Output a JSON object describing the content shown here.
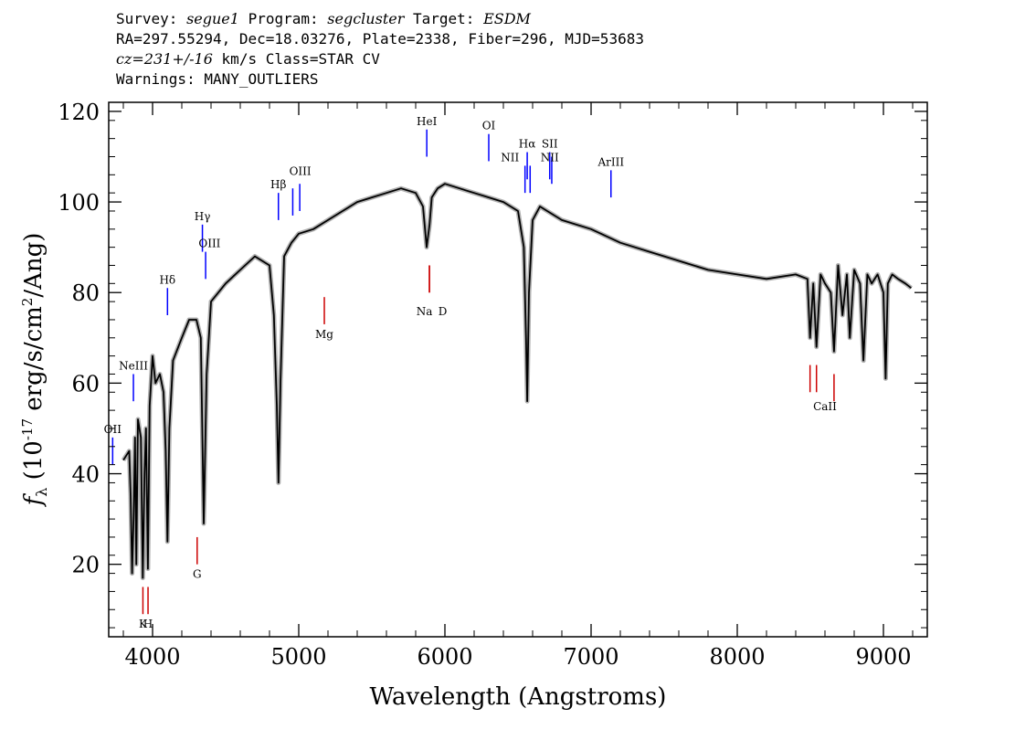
{
  "header": {
    "line1": {
      "survey_label": "Survey:",
      "survey": "segue1",
      "program_label": "Program:",
      "program": "segcluster",
      "target_label": "Target:",
      "target": "ESDM"
    },
    "line2": "RA=297.55294, Dec=18.03276, Plate=2338, Fiber=296, MJD=53683",
    "line3": {
      "cz": "cz=231+/-16",
      "rest": "km/s Class=STAR CV"
    },
    "line4": "Warnings: MANY_OUTLIERS"
  },
  "chart_data": {
    "type": "line",
    "xlabel": "Wavelength (Angstroms)",
    "ylabel": "f_λ (10^-17 erg/s/cm^2/Ang)",
    "xlim": [
      3700,
      9300
    ],
    "ylim": [
      4,
      122
    ],
    "x_ticks": [
      4000,
      5000,
      6000,
      7000,
      8000,
      9000
    ],
    "y_ticks": [
      20,
      40,
      60,
      80,
      100,
      120
    ],
    "colors": {
      "flux": "#000000",
      "error": "#b0b0b0",
      "emission": "#0000ff",
      "absorption": "#cc0000"
    },
    "series": [
      {
        "x": [
          3800,
          3820,
          3840,
          3850,
          3860,
          3870,
          3880,
          3889,
          3900,
          3920,
          3933,
          3945,
          3955,
          3968,
          3980,
          4000,
          4020,
          4050,
          4075,
          4090,
          4102,
          4115,
          4140,
          4200,
          4250,
          4300,
          4330,
          4340,
          4350,
          4370,
          4400,
          4450,
          4500,
          4600,
          4700,
          4800,
          4830,
          4850,
          4861,
          4875,
          4900,
          4950,
          5000,
          5100,
          5200,
          5300,
          5400,
          5500,
          5600,
          5700,
          5800,
          5850,
          5875,
          5895,
          5910,
          5950,
          6000,
          6100,
          6200,
          6300,
          6400,
          6500,
          6540,
          6555,
          6563,
          6575,
          6600,
          6650,
          6700,
          6800,
          7000,
          7200,
          7400,
          7600,
          7800,
          8000,
          8200,
          8400,
          8480,
          8498,
          8520,
          8542,
          8570,
          8600,
          8640,
          8662,
          8690,
          8720,
          8750,
          8770,
          8800,
          8840,
          8863,
          8890,
          8920,
          8960,
          9000,
          9015,
          9030,
          9060,
          9100,
          9150,
          9190
        ],
        "y": [
          43,
          44,
          45,
          35,
          18,
          30,
          48,
          20,
          52,
          48,
          17,
          40,
          50,
          19,
          55,
          66,
          60,
          62,
          58,
          45,
          25,
          50,
          65,
          70,
          74,
          74,
          70,
          50,
          29,
          62,
          78,
          80,
          82,
          85,
          88,
          86,
          75,
          55,
          38,
          60,
          88,
          91,
          93,
          94,
          96,
          98,
          100,
          101,
          102,
          103,
          102,
          99,
          90,
          95,
          101,
          103,
          104,
          103,
          102,
          101,
          100,
          98,
          90,
          70,
          56,
          80,
          96,
          99,
          98,
          96,
          94,
          91,
          89,
          87,
          85,
          84,
          83,
          84,
          83,
          70,
          82,
          68,
          84,
          82,
          80,
          67,
          86,
          75,
          84,
          70,
          85,
          82,
          65,
          84,
          82,
          84,
          80,
          61,
          82,
          84,
          83,
          82,
          81
        ]
      }
    ],
    "emission_lines": [
      {
        "label": "OII",
        "x": 3727,
        "y1": 42,
        "y2": 48,
        "lx": 3727,
        "ly": 49
      },
      {
        "label": "NeIII",
        "x": 3869,
        "y1": 56,
        "y2": 62,
        "lx": 3869,
        "ly": 63
      },
      {
        "label": "Hδ",
        "x": 4102,
        "y1": 75,
        "y2": 81,
        "lx": 4102,
        "ly": 82
      },
      {
        "label": "Hγ",
        "x": 4341,
        "y1": 89,
        "y2": 95,
        "lx": 4341,
        "ly": 96
      },
      {
        "label": "OIII",
        "x": 4363,
        "y1": 83,
        "y2": 89,
        "lx": 4390,
        "ly": 90
      },
      {
        "label": "Hβ",
        "x": 4861,
        "y1": 96,
        "y2": 102,
        "lx": 4861,
        "ly": 103
      },
      {
        "label": "OIII",
        "x": 4959,
        "y1": 97,
        "y2": 103,
        "lx": 5010,
        "ly": 106
      },
      {
        "label": "OIII",
        "x": 5007,
        "y1": 98,
        "y2": 104,
        "lx": 5010,
        "ly": 106
      },
      {
        "label": "HeI",
        "x": 5876,
        "y1": 110,
        "y2": 116,
        "lx": 5876,
        "ly": 117
      },
      {
        "label": "OI",
        "x": 6300,
        "y1": 109,
        "y2": 115,
        "lx": 6300,
        "ly": 116
      },
      {
        "label": "NII",
        "x": 6548,
        "y1": 102,
        "y2": 108,
        "lx": 6445,
        "ly": 109
      },
      {
        "label": "Hα",
        "x": 6563,
        "y1": 105,
        "y2": 111,
        "lx": 6563,
        "ly": 112
      },
      {
        "label": "NII",
        "x": 6583,
        "y1": 102,
        "y2": 108,
        "lx": 6445,
        "ly": 109
      },
      {
        "label": "SII",
        "x": 6717,
        "y1": 105,
        "y2": 111,
        "lx": 6717,
        "ly": 112
      },
      {
        "label": "NII",
        "x": 6731,
        "y1": 104,
        "y2": 110,
        "lx": 6717,
        "ly": 109
      },
      {
        "label": "ArIII",
        "x": 7136,
        "y1": 101,
        "y2": 107,
        "lx": 7136,
        "ly": 108
      }
    ],
    "absorption_lines": [
      {
        "label": "K",
        "x": 3934,
        "y1": 9,
        "y2": 15,
        "lx": 3934,
        "ly": 6
      },
      {
        "label": "H",
        "x": 3969,
        "y1": 9,
        "y2": 15,
        "lx": 3969,
        "ly": 6
      },
      {
        "label": "G",
        "x": 4305,
        "y1": 20,
        "y2": 26,
        "lx": 4305,
        "ly": 17
      },
      {
        "label": "Mg",
        "x": 5175,
        "y1": 73,
        "y2": 79,
        "lx": 5175,
        "ly": 70
      },
      {
        "label": "Na",
        "x": 5894,
        "y1": 80,
        "y2": 86,
        "lx": 5860,
        "ly": 75
      },
      {
        "label": "D",
        "x": 5894,
        "y1": 80,
        "y2": 86,
        "lx": 5985,
        "ly": 75
      },
      {
        "label": "CaII",
        "x": 8498,
        "y1": 58,
        "y2": 64,
        "lx": 8600,
        "ly": 54
      },
      {
        "label": "CaII",
        "x": 8542,
        "y1": 58,
        "y2": 64,
        "lx": 8600,
        "ly": 54
      },
      {
        "label": "CaII",
        "x": 8662,
        "y1": 56,
        "y2": 62,
        "lx": 8600,
        "ly": 54
      }
    ]
  }
}
